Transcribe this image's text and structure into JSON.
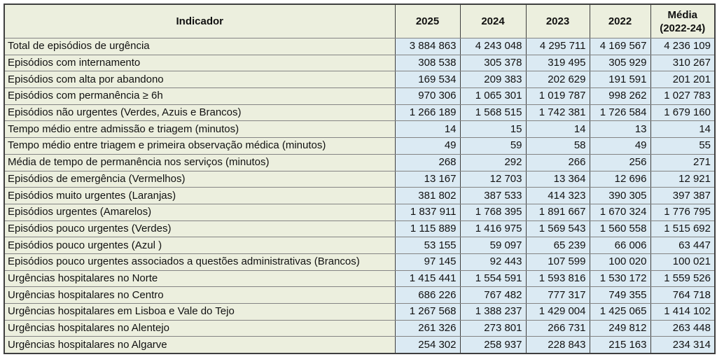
{
  "colors": {
    "indicator_column_bg": "#ecefde",
    "value_column_bg": "#dbeaf3",
    "vertical_border": "#3f3f3f",
    "horizontal_border": "#848484",
    "text": "#111111"
  },
  "table": {
    "header": {
      "indicator": "Indicador",
      "years": [
        "2025",
        "2024",
        "2023",
        "2022"
      ],
      "media": "Média\n(2022-24)"
    }
  },
  "chart_data": {
    "type": "table",
    "columns": [
      "Indicador",
      "2025",
      "2024",
      "2023",
      "2022",
      "Média (2022-24)"
    ],
    "number_format": "space-thousands-separator",
    "rows": [
      {
        "indicador": "Total de episódios de urgência",
        "values": [
          3884863,
          4243048,
          4295711,
          4169567,
          4236109
        ]
      },
      {
        "indicador": "Episódios com internamento",
        "values": [
          308538,
          305378,
          319495,
          305929,
          310267
        ]
      },
      {
        "indicador": "Episódios com alta por abandono",
        "values": [
          169534,
          209383,
          202629,
          191591,
          201201
        ]
      },
      {
        "indicador": "Episódios com permanência ≥ 6h",
        "values": [
          970306,
          1065301,
          1019787,
          998262,
          1027783
        ]
      },
      {
        "indicador": "Episódios não urgentes (Verdes, Azuis e Brancos)",
        "values": [
          1266189,
          1568515,
          1742381,
          1726584,
          1679160
        ]
      },
      {
        "indicador": "Tempo médio entre admissão e triagem (minutos)",
        "values": [
          14,
          15,
          14,
          13,
          14
        ]
      },
      {
        "indicador": "Tempo médio entre triagem e primeira observação médica (minutos)",
        "values": [
          49,
          59,
          58,
          49,
          55
        ]
      },
      {
        "indicador": "Média de tempo de permanência nos serviços (minutos)",
        "values": [
          268,
          292,
          266,
          256,
          271
        ]
      },
      {
        "indicador": "Episódios de emergência (Vermelhos)",
        "values": [
          13167,
          12703,
          13364,
          12696,
          12921
        ]
      },
      {
        "indicador": "Episódios muito urgentes (Laranjas)",
        "values": [
          381802,
          387533,
          414323,
          390305,
          397387
        ]
      },
      {
        "indicador": "Episódios urgentes (Amarelos)",
        "values": [
          1837911,
          1768395,
          1891667,
          1670324,
          1776795
        ]
      },
      {
        "indicador": "Episódios pouco urgentes (Verdes)",
        "values": [
          1115889,
          1416975,
          1569543,
          1560558,
          1515692
        ]
      },
      {
        "indicador": "Episódios pouco urgentes (Azul )",
        "values": [
          53155,
          59097,
          65239,
          66006,
          63447
        ]
      },
      {
        "indicador": "Episódios pouco urgentes associados a questões administrativas (Brancos)",
        "values": [
          97145,
          92443,
          107599,
          100020,
          100021
        ]
      },
      {
        "indicador": "Urgências hospitalares no Norte",
        "values": [
          1415441,
          1554591,
          1593816,
          1530172,
          1559526
        ]
      },
      {
        "indicador": "Urgências hospitalares no Centro",
        "values": [
          686226,
          767482,
          777317,
          749355,
          764718
        ]
      },
      {
        "indicador": "Urgências hospitalares em Lisboa e Vale do Tejo",
        "values": [
          1267568,
          1388237,
          1429004,
          1425065,
          1414102
        ]
      },
      {
        "indicador": "Urgências hospitalares no Alentejo",
        "values": [
          261326,
          273801,
          266731,
          249812,
          263448
        ]
      },
      {
        "indicador": "Urgências hospitalares no Algarve",
        "values": [
          254302,
          258937,
          228843,
          215163,
          234314
        ]
      }
    ]
  }
}
